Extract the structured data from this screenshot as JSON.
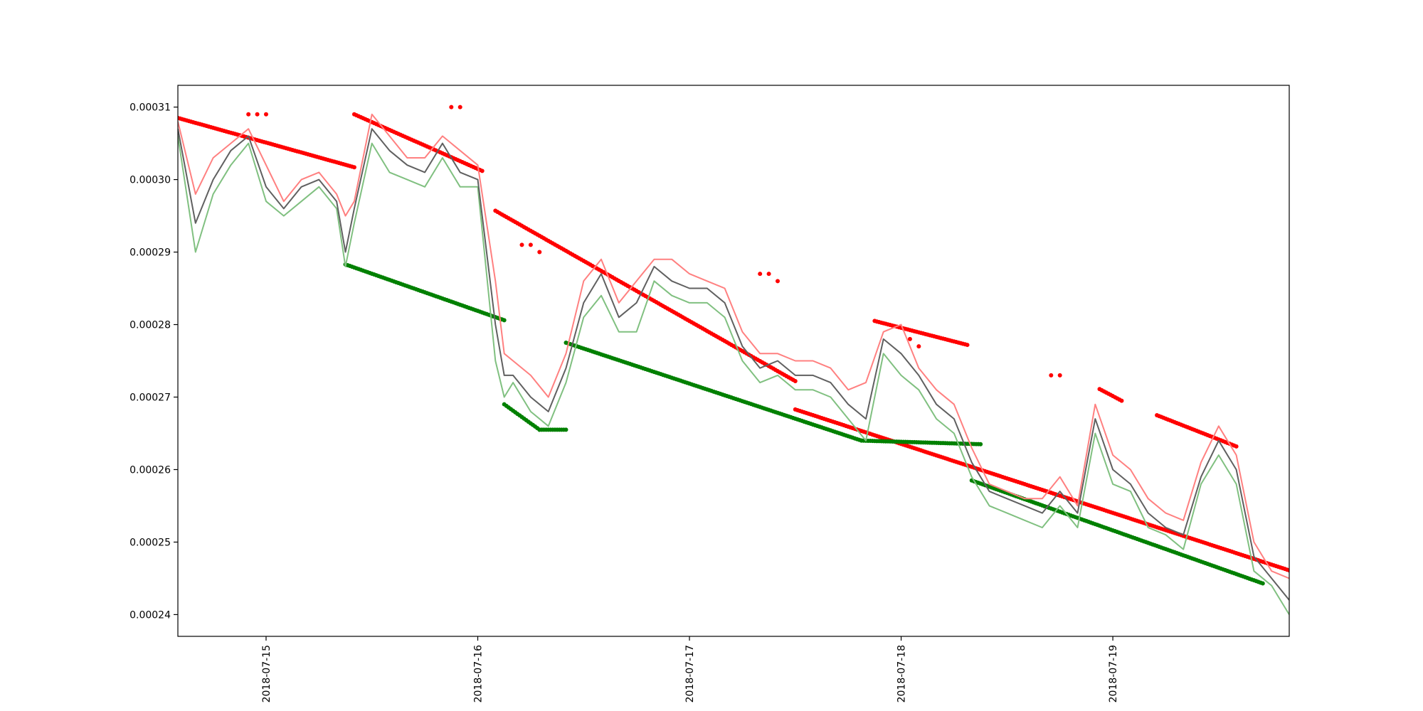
{
  "chart_data": {
    "type": "line",
    "title": "",
    "xlabel": "",
    "ylabel": "",
    "x_type": "datetime",
    "xlim": [
      "2018-07-14T14:00",
      "2018-07-19T20:00"
    ],
    "ylim": [
      0.000237,
      0.000313
    ],
    "grid": false,
    "legend": "none",
    "x_ticks": [
      "2018-07-15",
      "2018-07-16",
      "2018-07-17",
      "2018-07-18",
      "2018-07-19"
    ],
    "y_ticks": [
      "0.00024",
      "0.00025",
      "0.00026",
      "0.00027",
      "0.00028",
      "0.00029",
      "0.00030",
      "0.00031"
    ],
    "colors": {
      "upper_line": "#ff8080",
      "lower_line": "#80c080",
      "mid_line": "#606060",
      "resistance_points": "#ff0000",
      "support_points": "#008000"
    },
    "lines": [
      {
        "role": "upper",
        "x": [
          "2018-07-14T14:00",
          "2018-07-14T16:00",
          "2018-07-14T18:00",
          "2018-07-14T20:00",
          "2018-07-14T22:00",
          "2018-07-15T00:00",
          "2018-07-15T02:00",
          "2018-07-15T04:00",
          "2018-07-15T06:00",
          "2018-07-15T08:00",
          "2018-07-15T09:00",
          "2018-07-15T10:00",
          "2018-07-15T12:00",
          "2018-07-15T14:00",
          "2018-07-15T16:00",
          "2018-07-15T18:00",
          "2018-07-15T20:00",
          "2018-07-15T22:00",
          "2018-07-16T00:00",
          "2018-07-16T02:00",
          "2018-07-16T03:00",
          "2018-07-16T04:00",
          "2018-07-16T06:00",
          "2018-07-16T08:00",
          "2018-07-16T10:00",
          "2018-07-16T12:00",
          "2018-07-16T14:00",
          "2018-07-16T16:00",
          "2018-07-16T18:00",
          "2018-07-16T20:00",
          "2018-07-16T22:00",
          "2018-07-17T00:00",
          "2018-07-17T02:00",
          "2018-07-17T04:00",
          "2018-07-17T06:00",
          "2018-07-17T08:00",
          "2018-07-17T10:00",
          "2018-07-17T12:00",
          "2018-07-17T14:00",
          "2018-07-17T16:00",
          "2018-07-17T18:00",
          "2018-07-17T20:00",
          "2018-07-17T22:00",
          "2018-07-18T00:00",
          "2018-07-18T02:00",
          "2018-07-18T04:00",
          "2018-07-18T06:00",
          "2018-07-18T08:00",
          "2018-07-18T10:00",
          "2018-07-18T12:00",
          "2018-07-18T14:00",
          "2018-07-18T16:00",
          "2018-07-18T18:00",
          "2018-07-18T20:00",
          "2018-07-18T22:00",
          "2018-07-19T00:00",
          "2018-07-19T02:00",
          "2018-07-19T04:00",
          "2018-07-19T06:00",
          "2018-07-19T08:00",
          "2018-07-19T10:00",
          "2018-07-19T12:00",
          "2018-07-19T14:00",
          "2018-07-19T16:00",
          "2018-07-19T18:00",
          "2018-07-19T20:00"
        ],
        "y": [
          0.000308,
          0.000298,
          0.000303,
          0.000305,
          0.000307,
          0.000302,
          0.000297,
          0.0003,
          0.000301,
          0.000298,
          0.000295,
          0.000297,
          0.000309,
          0.000306,
          0.000303,
          0.000303,
          0.000306,
          0.000304,
          0.000302,
          0.000286,
          0.000276,
          0.000275,
          0.000273,
          0.00027,
          0.000276,
          0.000286,
          0.000289,
          0.000283,
          0.000286,
          0.000289,
          0.000289,
          0.000287,
          0.000286,
          0.000285,
          0.000279,
          0.000276,
          0.000276,
          0.000275,
          0.000275,
          0.000274,
          0.000271,
          0.000272,
          0.000279,
          0.00028,
          0.000274,
          0.000271,
          0.000269,
          0.000263,
          0.000258,
          0.000257,
          0.000256,
          0.000256,
          0.000259,
          0.000255,
          0.000269,
          0.000262,
          0.00026,
          0.000256,
          0.000254,
          0.000253,
          0.000261,
          0.000266,
          0.000262,
          0.00025,
          0.000246,
          0.000245
        ]
      },
      {
        "role": "lower",
        "x": [
          "2018-07-14T14:00",
          "2018-07-14T16:00",
          "2018-07-14T18:00",
          "2018-07-14T20:00",
          "2018-07-14T22:00",
          "2018-07-15T00:00",
          "2018-07-15T02:00",
          "2018-07-15T04:00",
          "2018-07-15T06:00",
          "2018-07-15T08:00",
          "2018-07-15T09:00",
          "2018-07-15T10:00",
          "2018-07-15T12:00",
          "2018-07-15T14:00",
          "2018-07-15T16:00",
          "2018-07-15T18:00",
          "2018-07-15T20:00",
          "2018-07-15T22:00",
          "2018-07-16T00:00",
          "2018-07-16T02:00",
          "2018-07-16T03:00",
          "2018-07-16T04:00",
          "2018-07-16T06:00",
          "2018-07-16T08:00",
          "2018-07-16T10:00",
          "2018-07-16T12:00",
          "2018-07-16T14:00",
          "2018-07-16T16:00",
          "2018-07-16T18:00",
          "2018-07-16T20:00",
          "2018-07-16T22:00",
          "2018-07-17T00:00",
          "2018-07-17T02:00",
          "2018-07-17T04:00",
          "2018-07-17T06:00",
          "2018-07-17T08:00",
          "2018-07-17T10:00",
          "2018-07-17T12:00",
          "2018-07-17T14:00",
          "2018-07-17T16:00",
          "2018-07-17T18:00",
          "2018-07-17T20:00",
          "2018-07-17T22:00",
          "2018-07-18T00:00",
          "2018-07-18T02:00",
          "2018-07-18T04:00",
          "2018-07-18T06:00",
          "2018-07-18T08:00",
          "2018-07-18T10:00",
          "2018-07-18T12:00",
          "2018-07-18T14:00",
          "2018-07-18T16:00",
          "2018-07-18T18:00",
          "2018-07-18T20:00",
          "2018-07-18T22:00",
          "2018-07-19T00:00",
          "2018-07-19T02:00",
          "2018-07-19T04:00",
          "2018-07-19T06:00",
          "2018-07-19T08:00",
          "2018-07-19T10:00",
          "2018-07-19T12:00",
          "2018-07-19T14:00",
          "2018-07-19T16:00",
          "2018-07-19T18:00",
          "2018-07-19T20:00"
        ],
        "y": [
          0.000306,
          0.00029,
          0.000298,
          0.000302,
          0.000305,
          0.000297,
          0.000295,
          0.000297,
          0.000299,
          0.000296,
          0.000288,
          0.000294,
          0.000305,
          0.000301,
          0.0003,
          0.000299,
          0.000303,
          0.000299,
          0.000299,
          0.000275,
          0.00027,
          0.000272,
          0.000268,
          0.000266,
          0.000272,
          0.000281,
          0.000284,
          0.000279,
          0.000279,
          0.000286,
          0.000284,
          0.000283,
          0.000283,
          0.000281,
          0.000275,
          0.000272,
          0.000273,
          0.000271,
          0.000271,
          0.00027,
          0.000267,
          0.000264,
          0.000276,
          0.000273,
          0.000271,
          0.000267,
          0.000265,
          0.000259,
          0.000255,
          0.000254,
          0.000253,
          0.000252,
          0.000255,
          0.000252,
          0.000265,
          0.000258,
          0.000257,
          0.000252,
          0.000251,
          0.000249,
          0.000258,
          0.000262,
          0.000258,
          0.000246,
          0.000244,
          0.00024
        ]
      },
      {
        "role": "mid",
        "x": [
          "2018-07-14T14:00",
          "2018-07-14T16:00",
          "2018-07-14T18:00",
          "2018-07-14T20:00",
          "2018-07-14T22:00",
          "2018-07-15T00:00",
          "2018-07-15T02:00",
          "2018-07-15T04:00",
          "2018-07-15T06:00",
          "2018-07-15T08:00",
          "2018-07-15T09:00",
          "2018-07-15T10:00",
          "2018-07-15T12:00",
          "2018-07-15T14:00",
          "2018-07-15T16:00",
          "2018-07-15T18:00",
          "2018-07-15T20:00",
          "2018-07-15T22:00",
          "2018-07-16T00:00",
          "2018-07-16T02:00",
          "2018-07-16T03:00",
          "2018-07-16T04:00",
          "2018-07-16T06:00",
          "2018-07-16T08:00",
          "2018-07-16T10:00",
          "2018-07-16T12:00",
          "2018-07-16T14:00",
          "2018-07-16T16:00",
          "2018-07-16T18:00",
          "2018-07-16T20:00",
          "2018-07-16T22:00",
          "2018-07-17T00:00",
          "2018-07-17T02:00",
          "2018-07-17T04:00",
          "2018-07-17T06:00",
          "2018-07-17T08:00",
          "2018-07-17T10:00",
          "2018-07-17T12:00",
          "2018-07-17T14:00",
          "2018-07-17T16:00",
          "2018-07-17T18:00",
          "2018-07-17T20:00",
          "2018-07-17T22:00",
          "2018-07-18T00:00",
          "2018-07-18T02:00",
          "2018-07-18T04:00",
          "2018-07-18T06:00",
          "2018-07-18T08:00",
          "2018-07-18T10:00",
          "2018-07-18T12:00",
          "2018-07-18T14:00",
          "2018-07-18T16:00",
          "2018-07-18T18:00",
          "2018-07-18T20:00",
          "2018-07-18T22:00",
          "2018-07-19T00:00",
          "2018-07-19T02:00",
          "2018-07-19T04:00",
          "2018-07-19T06:00",
          "2018-07-19T08:00",
          "2018-07-19T10:00",
          "2018-07-19T12:00",
          "2018-07-19T14:00",
          "2018-07-19T16:00",
          "2018-07-19T18:00",
          "2018-07-19T20:00"
        ],
        "y": [
          0.000307,
          0.000294,
          0.0003,
          0.000304,
          0.000306,
          0.000299,
          0.000296,
          0.000299,
          0.0003,
          0.000297,
          0.00029,
          0.000296,
          0.000307,
          0.000304,
          0.000302,
          0.000301,
          0.000305,
          0.000301,
          0.0003,
          0.00028,
          0.000273,
          0.000273,
          0.00027,
          0.000268,
          0.000274,
          0.000283,
          0.000287,
          0.000281,
          0.000283,
          0.000288,
          0.000286,
          0.000285,
          0.000285,
          0.000283,
          0.000277,
          0.000274,
          0.000275,
          0.000273,
          0.000273,
          0.000272,
          0.000269,
          0.000267,
          0.000278,
          0.000276,
          0.000273,
          0.000269,
          0.000267,
          0.000261,
          0.000257,
          0.000256,
          0.000255,
          0.000254,
          0.000257,
          0.000254,
          0.000267,
          0.00026,
          0.000258,
          0.000254,
          0.000252,
          0.000251,
          0.000259,
          0.000264,
          0.00026,
          0.000248,
          0.000245,
          0.000242
        ]
      }
    ],
    "scatter": [
      {
        "role": "resistance",
        "segments": [
          {
            "x": [
              "2018-07-14T14:00",
              "2018-07-15T10:00"
            ],
            "y": [
              0.0003085,
              0.0003017
            ]
          },
          {
            "x": [
              "2018-07-15T10:00",
              "2018-07-16T00:30"
            ],
            "y": [
              0.000309,
              0.0003012
            ]
          },
          {
            "x": [
              "2018-07-16T02:00",
              "2018-07-17T12:00"
            ],
            "y": [
              0.0002957,
              0.0002722
            ]
          },
          {
            "x": [
              "2018-07-17T12:00",
              "2018-07-19T20:00"
            ],
            "y": [
              0.0002683,
              0.0002461
            ]
          },
          {
            "x": [
              "2018-07-17T21:00",
              "2018-07-18T07:30"
            ],
            "y": [
              0.0002805,
              0.0002772
            ]
          },
          {
            "x": [
              "2018-07-19T05:00",
              "2018-07-19T14:00"
            ],
            "y": [
              0.0002675,
              0.0002632
            ]
          },
          {
            "x": [
              "2018-07-18T22:30",
              "2018-07-19T01:00"
            ],
            "y": [
              0.0002711,
              0.0002695
            ]
          }
        ],
        "points": [
          {
            "x": [
              "2018-07-14T22:00",
              "2018-07-14T23:00",
              "2018-07-15T00:00"
            ],
            "y": [
              0.000309,
              0.000309,
              0.000309
            ]
          },
          {
            "x": [
              "2018-07-15T21:00",
              "2018-07-15T22:00"
            ],
            "y": [
              0.00031,
              0.00031
            ]
          },
          {
            "x": [
              "2018-07-16T05:00",
              "2018-07-16T06:00",
              "2018-07-16T07:00"
            ],
            "y": [
              0.000291,
              0.000291,
              0.00029
            ]
          },
          {
            "x": [
              "2018-07-17T08:00",
              "2018-07-17T09:00",
              "2018-07-17T10:00"
            ],
            "y": [
              0.000287,
              0.000287,
              0.000286
            ]
          },
          {
            "x": [
              "2018-07-18T17:00",
              "2018-07-18T18:00"
            ],
            "y": [
              0.000273,
              0.000273
            ]
          },
          {
            "x": [
              "2018-07-18T01:00",
              "2018-07-18T02:00"
            ],
            "y": [
              0.000278,
              0.000277
            ]
          }
        ]
      },
      {
        "role": "support",
        "segments": [
          {
            "x": [
              "2018-07-15T09:00",
              "2018-07-16T03:00"
            ],
            "y": [
              0.0002883,
              0.0002806
            ]
          },
          {
            "x": [
              "2018-07-16T03:00",
              "2018-07-16T07:00"
            ],
            "y": [
              0.000269,
              0.0002655
            ]
          },
          {
            "x": [
              "2018-07-16T07:00",
              "2018-07-16T10:00"
            ],
            "y": [
              0.0002655,
              0.0002655
            ]
          },
          {
            "x": [
              "2018-07-16T10:00",
              "2018-07-17T19:30"
            ],
            "y": [
              0.0002775,
              0.000264
            ]
          },
          {
            "x": [
              "2018-07-17T19:30",
              "2018-07-18T09:00"
            ],
            "y": [
              0.000264,
              0.0002635
            ]
          },
          {
            "x": [
              "2018-07-18T08:00",
              "2018-07-19T17:00"
            ],
            "y": [
              0.0002585,
              0.0002443
            ]
          }
        ]
      }
    ]
  }
}
